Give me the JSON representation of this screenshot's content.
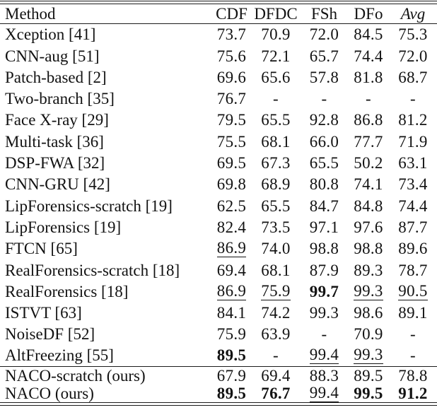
{
  "paper_table": {
    "columns": [
      {
        "label": "Method",
        "align": "left",
        "italic": false
      },
      {
        "label": "CDF",
        "align": "center",
        "italic": false
      },
      {
        "label": "DFDC",
        "align": "center",
        "italic": false
      },
      {
        "label": "FSh",
        "align": "center",
        "italic": false
      },
      {
        "label": "DFo",
        "align": "center",
        "italic": false
      },
      {
        "label": "Avg",
        "align": "center",
        "italic": true
      }
    ],
    "groups": [
      {
        "name": "prior-methods",
        "rows": [
          {
            "method": "Xception [41]",
            "cells": [
              {
                "t": "73.7"
              },
              {
                "t": "70.9"
              },
              {
                "t": "72.0"
              },
              {
                "t": "84.5"
              },
              {
                "t": "75.3"
              }
            ]
          },
          {
            "method": "CNN-aug [51]",
            "cells": [
              {
                "t": "75.6"
              },
              {
                "t": "72.1"
              },
              {
                "t": "65.7"
              },
              {
                "t": "74.4"
              },
              {
                "t": "72.0"
              }
            ]
          },
          {
            "method": "Patch-based [2]",
            "cells": [
              {
                "t": "69.6"
              },
              {
                "t": "65.6"
              },
              {
                "t": "57.8"
              },
              {
                "t": "81.8"
              },
              {
                "t": "68.7"
              }
            ]
          },
          {
            "method": "Two-branch [35]",
            "cells": [
              {
                "t": "76.7"
              },
              {
                "t": "-"
              },
              {
                "t": "-"
              },
              {
                "t": "-"
              },
              {
                "t": "-"
              }
            ]
          },
          {
            "method": "Face X-ray [29]",
            "cells": [
              {
                "t": "79.5"
              },
              {
                "t": "65.5"
              },
              {
                "t": "92.8"
              },
              {
                "t": "86.8"
              },
              {
                "t": "81.2"
              }
            ]
          },
          {
            "method": "Multi-task [36]",
            "cells": [
              {
                "t": "75.5"
              },
              {
                "t": "68.1"
              },
              {
                "t": "66.0"
              },
              {
                "t": "77.7"
              },
              {
                "t": "71.9"
              }
            ]
          },
          {
            "method": "DSP-FWA [32]",
            "cells": [
              {
                "t": "69.5"
              },
              {
                "t": "67.3"
              },
              {
                "t": "65.5"
              },
              {
                "t": "50.2"
              },
              {
                "t": "63.1"
              }
            ]
          },
          {
            "method": "CNN-GRU [42]",
            "cells": [
              {
                "t": "69.8"
              },
              {
                "t": "68.9"
              },
              {
                "t": "80.8"
              },
              {
                "t": "74.1"
              },
              {
                "t": "73.4"
              }
            ]
          },
          {
            "method": "LipForensics-scratch [19]",
            "cells": [
              {
                "t": "62.5"
              },
              {
                "t": "65.5"
              },
              {
                "t": "84.7"
              },
              {
                "t": "84.8"
              },
              {
                "t": "74.4"
              }
            ]
          },
          {
            "method": "LipForensics [19]",
            "cells": [
              {
                "t": "82.4"
              },
              {
                "t": "73.5"
              },
              {
                "t": "97.1"
              },
              {
                "t": "97.6"
              },
              {
                "t": "87.7"
              }
            ]
          },
          {
            "method": "FTCN [65]",
            "cells": [
              {
                "t": "86.9",
                "u": true
              },
              {
                "t": "74.0"
              },
              {
                "t": "98.8"
              },
              {
                "t": "98.8"
              },
              {
                "t": "89.6"
              }
            ]
          },
          {
            "method": "RealForensics-scratch [18]",
            "cells": [
              {
                "t": "69.4"
              },
              {
                "t": "68.1"
              },
              {
                "t": "87.9"
              },
              {
                "t": "89.3"
              },
              {
                "t": "78.7"
              }
            ]
          },
          {
            "method": "RealForensics [18]",
            "cells": [
              {
                "t": "86.9",
                "u": true
              },
              {
                "t": "75.9",
                "u": true
              },
              {
                "t": "99.7",
                "b": true
              },
              {
                "t": "99.3",
                "u": true
              },
              {
                "t": "90.5",
                "u": true
              }
            ]
          },
          {
            "method": "ISTVT [63]",
            "cells": [
              {
                "t": "84.1"
              },
              {
                "t": "74.2"
              },
              {
                "t": "99.3"
              },
              {
                "t": "98.6"
              },
              {
                "t": "89.1"
              }
            ]
          },
          {
            "method": "NoiseDF [52]",
            "cells": [
              {
                "t": "75.9"
              },
              {
                "t": "63.9"
              },
              {
                "t": "-"
              },
              {
                "t": "70.9"
              },
              {
                "t": "-"
              }
            ]
          },
          {
            "method": "AltFreezing [55]",
            "cells": [
              {
                "t": "89.5",
                "b": true
              },
              {
                "t": "-"
              },
              {
                "t": "99.4",
                "u": true
              },
              {
                "t": "99.3",
                "u": true
              },
              {
                "t": "-"
              }
            ]
          }
        ]
      },
      {
        "name": "ours",
        "rows": [
          {
            "method": "NACO-scratch (ours)",
            "cells": [
              {
                "t": "67.9"
              },
              {
                "t": "69.4"
              },
              {
                "t": "88.3"
              },
              {
                "t": "89.5"
              },
              {
                "t": "78.8"
              }
            ]
          },
          {
            "method": "NACO (ours)",
            "cells": [
              {
                "t": "89.5",
                "b": true
              },
              {
                "t": "76.7",
                "b": true
              },
              {
                "t": "99.4",
                "u": true
              },
              {
                "t": "99.5",
                "b": true
              },
              {
                "t": "91.2",
                "b": true
              }
            ]
          }
        ]
      }
    ],
    "colors": {
      "text": "#121212",
      "rule": "#1c1c1c",
      "background": "#ffffff"
    }
  }
}
